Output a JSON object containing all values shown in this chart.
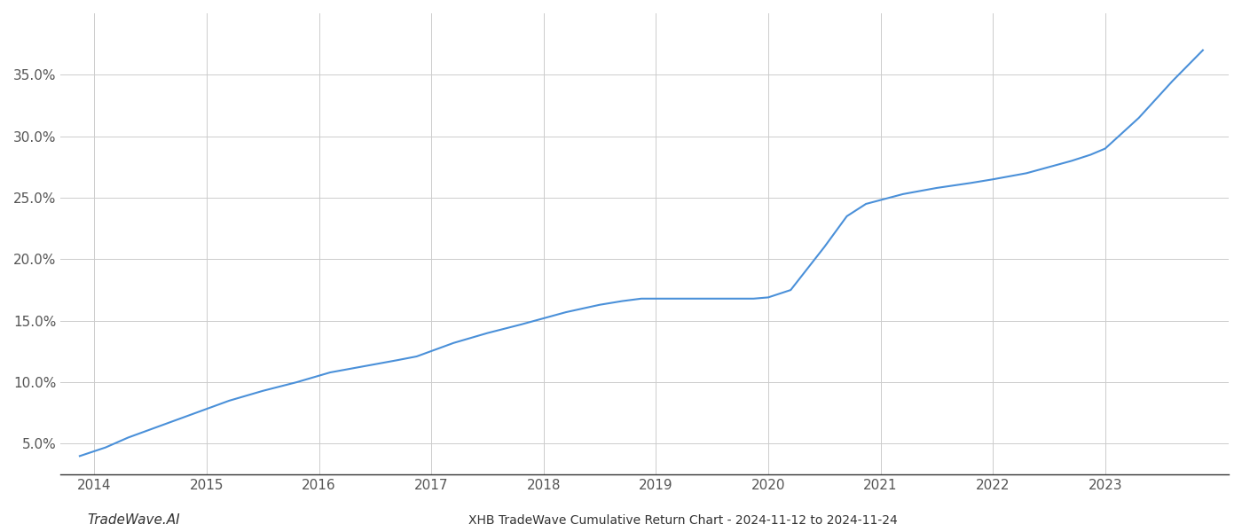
{
  "x_values": [
    2013.87,
    2014.1,
    2014.3,
    2014.6,
    2014.9,
    2015.2,
    2015.5,
    2015.8,
    2016.1,
    2016.4,
    2016.7,
    2016.87,
    2017.2,
    2017.5,
    2017.8,
    2018.0,
    2018.2,
    2018.5,
    2018.7,
    2018.87,
    2019.0,
    2019.3,
    2019.6,
    2019.87,
    2020.0,
    2020.2,
    2020.5,
    2020.7,
    2020.87,
    2021.2,
    2021.5,
    2021.8,
    2022.0,
    2022.3,
    2022.5,
    2022.7,
    2022.87,
    2023.0,
    2023.3,
    2023.6,
    2023.87
  ],
  "y_values": [
    0.04,
    0.047,
    0.055,
    0.065,
    0.075,
    0.085,
    0.093,
    0.1,
    0.108,
    0.113,
    0.118,
    0.121,
    0.132,
    0.14,
    0.147,
    0.152,
    0.157,
    0.163,
    0.166,
    0.168,
    0.168,
    0.168,
    0.168,
    0.168,
    0.169,
    0.175,
    0.21,
    0.235,
    0.245,
    0.253,
    0.258,
    0.262,
    0.265,
    0.27,
    0.275,
    0.28,
    0.285,
    0.29,
    0.315,
    0.345,
    0.37
  ],
  "line_color": "#4a90d9",
  "background_color": "#ffffff",
  "grid_color": "#cccccc",
  "title": "XHB TradeWave Cumulative Return Chart - 2024-11-12 to 2024-11-24",
  "watermark": "TradeWave.AI",
  "yticks": [
    0.05,
    0.1,
    0.15,
    0.2,
    0.25,
    0.3,
    0.35
  ],
  "ytick_labels": [
    "5.0%",
    "10.0%",
    "15.0%",
    "20.0%",
    "25.0%",
    "30.0%",
    "35.0%"
  ],
  "xticks": [
    2014,
    2015,
    2016,
    2017,
    2018,
    2019,
    2020,
    2021,
    2022,
    2023
  ],
  "xtick_labels": [
    "2014",
    "2015",
    "2016",
    "2017",
    "2018",
    "2019",
    "2020",
    "2021",
    "2022",
    "2023"
  ],
  "xlim": [
    2013.7,
    2024.1
  ],
  "ylim": [
    0.025,
    0.4
  ],
  "line_width": 1.5,
  "tick_fontsize": 11,
  "tick_color": "#555555",
  "spine_color": "#333333",
  "title_fontsize": 10,
  "watermark_fontsize": 11
}
